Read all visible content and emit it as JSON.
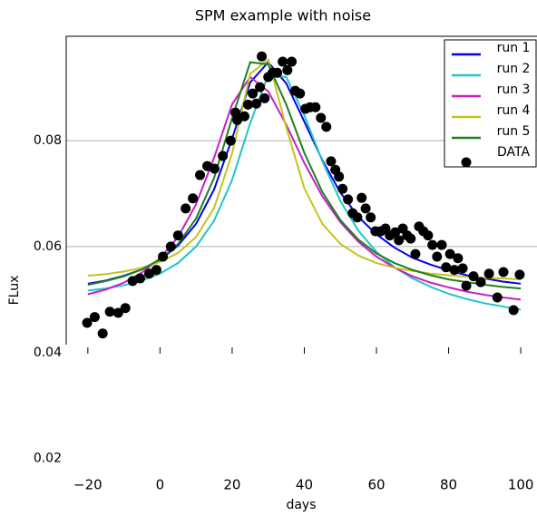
{
  "chart_data": {
    "type": "line",
    "title": "SPM example with noise",
    "x_label": "days",
    "y_label": "FLux",
    "xlim": [
      -26,
      104.5
    ],
    "ylim": [
      0.0415,
      0.0997
    ],
    "xticks": [
      {
        "value": -20,
        "label": "−20"
      },
      0,
      20,
      40,
      60,
      80,
      100
    ],
    "yticks": [
      0.02,
      0.04,
      0.06,
      0.08
    ],
    "grid": true,
    "legend": "upper right",
    "x": [
      -20,
      -15,
      -10,
      -5,
      0,
      5,
      10,
      15,
      20,
      25,
      30,
      35,
      40,
      45,
      50,
      55,
      60,
      65,
      70,
      75,
      80,
      85,
      90,
      95,
      100
    ],
    "series": [
      {
        "name": "run 1",
        "color": "#0000ee",
        "values": [
          0.053,
          0.0536,
          0.0545,
          0.0557,
          0.0575,
          0.0602,
          0.0643,
          0.0708,
          0.0804,
          0.091,
          0.0948,
          0.0908,
          0.0836,
          0.0763,
          0.0702,
          0.0656,
          0.0623,
          0.0598,
          0.0579,
          0.0566,
          0.0555,
          0.0546,
          0.054,
          0.0534,
          0.053
        ]
      },
      {
        "name": "run 2",
        "color": "#22c4c8",
        "values": [
          0.0517,
          0.0521,
          0.0527,
          0.0536,
          0.0549,
          0.0569,
          0.06,
          0.0649,
          0.0726,
          0.0833,
          0.0924,
          0.092,
          0.0848,
          0.0761,
          0.0686,
          0.063,
          0.059,
          0.0561,
          0.054,
          0.0524,
          0.0511,
          0.0501,
          0.0493,
          0.0487,
          0.0481
        ]
      },
      {
        "name": "run 3",
        "color": "#c81fc8",
        "values": [
          0.051,
          0.0519,
          0.0532,
          0.0551,
          0.0578,
          0.0618,
          0.068,
          0.0768,
          0.0869,
          0.092,
          0.0893,
          0.083,
          0.0758,
          0.0695,
          0.0646,
          0.0609,
          0.0581,
          0.056,
          0.0544,
          0.0532,
          0.0523,
          0.0515,
          0.0509,
          0.0504,
          0.05
        ]
      },
      {
        "name": "run 4",
        "color": "#c4c41c",
        "values": [
          0.0545,
          0.0548,
          0.0553,
          0.056,
          0.0571,
          0.0588,
          0.0618,
          0.0673,
          0.0776,
          0.0926,
          0.0953,
          0.0825,
          0.071,
          0.0643,
          0.0605,
          0.0583,
          0.0569,
          0.056,
          0.0554,
          0.0549,
          0.0546,
          0.0543,
          0.0541,
          0.054,
          0.0538
        ]
      },
      {
        "name": "run 5",
        "color": "#1f7f1f",
        "values": [
          0.0528,
          0.0535,
          0.0544,
          0.0557,
          0.0576,
          0.0605,
          0.0653,
          0.073,
          0.0843,
          0.0948,
          0.0944,
          0.0868,
          0.0777,
          0.0703,
          0.065,
          0.0613,
          0.0587,
          0.0569,
          0.0556,
          0.0546,
          0.0538,
          0.0533,
          0.0528,
          0.0524,
          0.0521
        ]
      },
      {
        "name": "DATA",
        "type": "scatter",
        "color": "#000000",
        "x": [
          -20.2,
          -18.1,
          -15.9,
          -13.9,
          -11.6,
          -9.6,
          -7.6,
          -5.5,
          -3.0,
          -1.0,
          0.8,
          3.0,
          5.0,
          7.1,
          9.1,
          11.1,
          13.1,
          15.1,
          17.4,
          19.6,
          21.4,
          20.9,
          23.4,
          24.4,
          25.7,
          26.7,
          27.7,
          29.0,
          28.2,
          30.0,
          31.2,
          32.5,
          34.0,
          35.3,
          36.5,
          37.5,
          38.8,
          40.3,
          41.6,
          43.1,
          44.6,
          46.1,
          47.4,
          48.6,
          49.6,
          50.6,
          52.1,
          53.4,
          54.7,
          55.9,
          57.0,
          58.4,
          59.7,
          61.2,
          62.5,
          63.7,
          65.2,
          66.2,
          67.3,
          68.5,
          69.5,
          70.8,
          71.8,
          73.0,
          74.3,
          75.5,
          76.8,
          78.1,
          79.3,
          80.4,
          81.6,
          82.6,
          83.9,
          84.9,
          86.9,
          88.9,
          91.2,
          93.5,
          95.2,
          98.0,
          99.7
        ],
        "values": [
          0.0456,
          0.0467,
          0.0436,
          0.0477,
          0.0475,
          0.0484,
          0.0535,
          0.054,
          0.0549,
          0.0556,
          0.0581,
          0.06,
          0.0621,
          0.0672,
          0.0691,
          0.0735,
          0.0752,
          0.0747,
          0.0771,
          0.08,
          0.0839,
          0.0853,
          0.0846,
          0.0868,
          0.0889,
          0.087,
          0.0901,
          0.088,
          0.0959,
          0.092,
          0.0928,
          0.0928,
          0.0949,
          0.0933,
          0.0949,
          0.0894,
          0.0889,
          0.086,
          0.0863,
          0.0863,
          0.0843,
          0.0826,
          0.0761,
          0.0745,
          0.0732,
          0.0709,
          0.0689,
          0.0663,
          0.0655,
          0.0692,
          0.0672,
          0.0655,
          0.0629,
          0.0629,
          0.0634,
          0.0621,
          0.0627,
          0.0612,
          0.0634,
          0.0621,
          0.0615,
          0.0586,
          0.0638,
          0.0629,
          0.0621,
          0.0603,
          0.0581,
          0.0603,
          0.0561,
          0.0586,
          0.0556,
          0.0578,
          0.0559,
          0.0526,
          0.0544,
          0.0533,
          0.0549,
          0.0504,
          0.0552,
          0.048,
          0.0547
        ]
      }
    ]
  }
}
